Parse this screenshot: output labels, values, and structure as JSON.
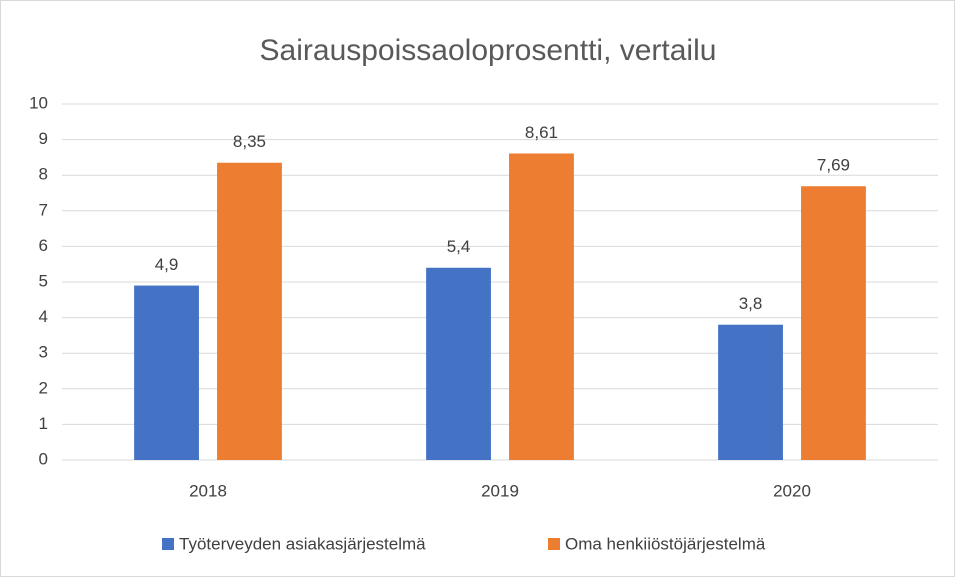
{
  "chart_data": {
    "type": "bar",
    "title": "Sairauspoissaoloprosentti, vertailu",
    "categories": [
      "2018",
      "2019",
      "2020"
    ],
    "series": [
      {
        "name": "Työterveyden asiakasjärjestelmä",
        "color": "#4472c4",
        "values": [
          4.9,
          5.4,
          3.8
        ],
        "value_labels": [
          "4,9",
          "5,4",
          "3,8"
        ]
      },
      {
        "name": "Oma henkiiöstöjärjestelmä",
        "color": "#ed7d31",
        "values": [
          8.35,
          8.61,
          7.69
        ],
        "value_labels": [
          "8,35",
          "8,61",
          "7,69"
        ]
      }
    ],
    "ylim": [
      0,
      10
    ],
    "yticks": [
      0,
      1,
      2,
      3,
      4,
      5,
      6,
      7,
      8,
      9,
      10
    ],
    "grid": true,
    "legend": "bottom"
  }
}
